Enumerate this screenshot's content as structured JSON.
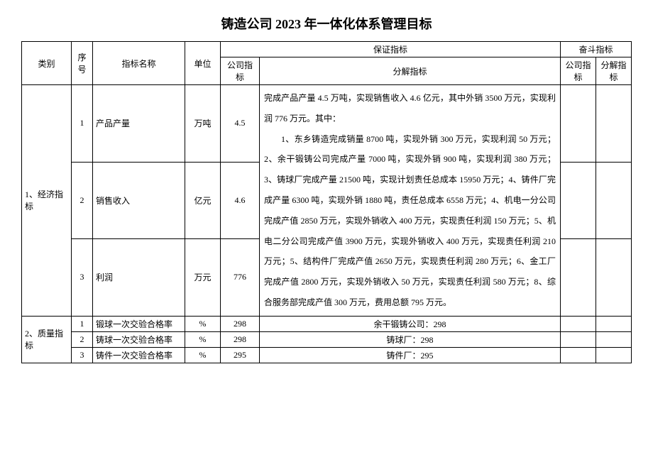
{
  "title": "铸造公司 2023 年一体化体系管理目标",
  "headers": {
    "category": "类别",
    "seq": "序号",
    "indicator_name": "指标名称",
    "unit": "单位",
    "guarantee": "保证指标",
    "company_indicator": "公司指标",
    "decompose_indicator": "分解指标",
    "strive": "奋斗指标",
    "strive_company": "公司指标",
    "strive_decompose": "分解指标"
  },
  "categories": {
    "economic": "1、经济指标",
    "quality": "2、质量指标"
  },
  "economic_rows": [
    {
      "seq": "1",
      "name": "产品产量",
      "unit": "万吨",
      "company": "4.5"
    },
    {
      "seq": "2",
      "name": "销售收入",
      "unit": "亿元",
      "company": "4.6"
    },
    {
      "seq": "3",
      "name": "利润",
      "unit": "万元",
      "company": "776"
    }
  ],
  "economic_decomp": {
    "p1": "完成产品产量 4.5 万吨，实现销售收入 4.6 亿元，其中外销 3500 万元，实现利润 776 万元。其中：",
    "p2": "1、东乡铸造完成销量 8700 吨，实现外销 300 万元，实现利润 50 万元；2、余干锻铸公司完成产量 7000 吨，实现外销 900 吨，实现利润 380 万元；3、铸球厂完成产量 21500 吨，实现计划责任总成本 15950 万元；4、铸件厂完成产量 6300 吨，实现外销 1880 吨，责任总成本 6558 万元；4、机电一分公司完成产值 2850 万元，实现外销收入 400 万元，实现责任利润 150 万元；5、机电二分公司完成产值 3900 万元，实现外销收入 400 万元，实现责任利润 210 万元；5、结构件厂完成产值 2650 万元，实现责任利润 280 万元；6、金工厂完成产值 2800 万元，实现外销收入 50 万元，实现责任利润 580 万元；8、综合服务部完成产值 300 万元，费用总额 795 万元。"
  },
  "quality_rows": [
    {
      "seq": "1",
      "name": "锻球一次交验合格率",
      "unit": "%",
      "company": "298",
      "decomp": "余干锻铸公司：298"
    },
    {
      "seq": "2",
      "name": "铸球一次交验合格率",
      "unit": "%",
      "company": "298",
      "decomp": "铸球厂：298"
    },
    {
      "seq": "3",
      "name": "铸件一次交验合格率",
      "unit": "%",
      "company": "295",
      "decomp": "铸件厂：295"
    }
  ]
}
